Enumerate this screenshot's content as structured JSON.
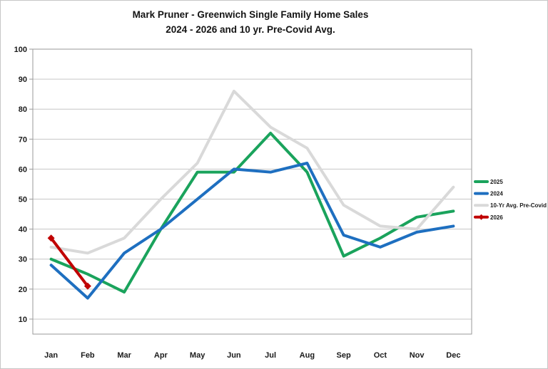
{
  "title": {
    "line1": "Mark Pruner - Greenwich Single Family Home Sales",
    "line2": "2024 - 2026 and 10 yr. Pre-Covid Avg."
  },
  "chart_data": {
    "type": "line",
    "title": "Mark Pruner - Greenwich Single Family Home Sales",
    "subtitle": "2024 - 2026 and 10 yr. Pre-Covid Avg.",
    "categories": [
      "Jan",
      "Feb",
      "Mar",
      "Apr",
      "May",
      "Jun",
      "Jul",
      "Aug",
      "Sep",
      "Oct",
      "Nov",
      "Dec"
    ],
    "series": [
      {
        "name": "2025",
        "color": "#1AA35C",
        "marker": "none",
        "values": [
          30,
          25,
          19,
          40,
          59,
          59,
          72,
          59,
          31,
          37,
          44,
          46
        ]
      },
      {
        "name": "2024",
        "color": "#1E6FC0",
        "marker": "none",
        "values": [
          28,
          17,
          32,
          40,
          50,
          60,
          59,
          62,
          38,
          34,
          39,
          41
        ]
      },
      {
        "name": "10-Yr Avg. Pre-Covid",
        "color": "#D9D9D9",
        "marker": "none",
        "values": [
          34,
          32,
          37,
          50,
          62,
          86,
          74,
          67,
          48,
          41,
          40,
          54
        ]
      },
      {
        "name": "2026",
        "color": "#C00000",
        "marker": "diamond",
        "values": [
          37,
          21,
          null,
          null,
          null,
          null,
          null,
          null,
          null,
          null,
          null,
          null
        ]
      }
    ],
    "ylim": [
      5,
      100
    ],
    "yticks": [
      10,
      20,
      30,
      40,
      50,
      60,
      70,
      80,
      90,
      100
    ],
    "grid": true,
    "legend_position": "right",
    "colors": {
      "grid": "#C6C6C6",
      "frame": "#9A9A9A",
      "text": "#1A1A1A"
    }
  }
}
